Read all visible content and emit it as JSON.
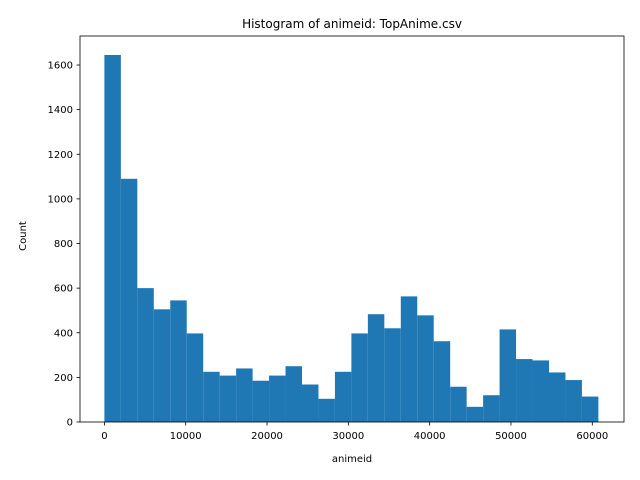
{
  "chart_data": {
    "type": "bar",
    "title": "Histogram of animeid: TopAnime.csv",
    "xlabel": "animeid",
    "ylabel": "Count",
    "xlim": [
      -3000,
      63900
    ],
    "ylim": [
      0,
      1730
    ],
    "xticks": [
      0,
      10000,
      20000,
      30000,
      40000,
      50000,
      60000
    ],
    "yticks": [
      0,
      200,
      400,
      600,
      800,
      1000,
      1200,
      1400,
      1600
    ],
    "bin_start": 0,
    "bin_width": 2025,
    "counts": [
      1645,
      1090,
      600,
      505,
      545,
      397,
      225,
      208,
      240,
      185,
      208,
      250,
      168,
      104,
      225,
      397,
      483,
      420,
      563,
      478,
      362,
      158,
      68,
      120,
      415,
      282,
      276,
      222,
      188,
      114
    ],
    "bar_color": "#1f77b4",
    "grid": false
  }
}
